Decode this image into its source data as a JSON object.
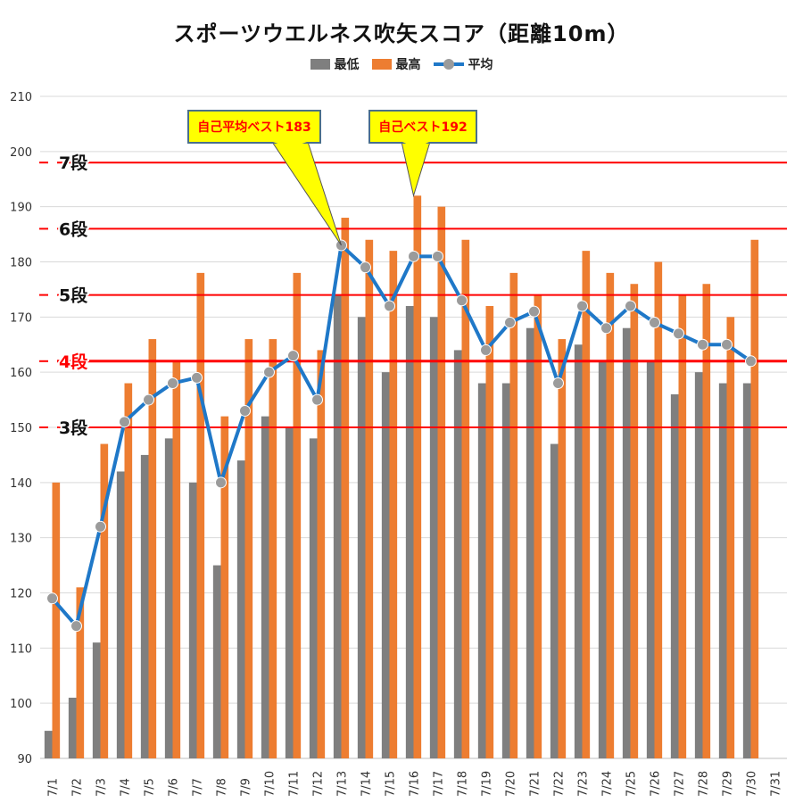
{
  "chart_data": {
    "type": "bar",
    "title": "スポーツウエルネス吹矢スコア（距離10m）",
    "categories": [
      "7/1",
      "7/2",
      "7/3",
      "7/4",
      "7/5",
      "7/6",
      "7/7",
      "7/8",
      "7/9",
      "7/10",
      "7/11",
      "7/12",
      "7/13",
      "7/14",
      "7/15",
      "7/16",
      "7/17",
      "7/18",
      "7/19",
      "7/20",
      "7/21",
      "7/22",
      "7/23",
      "7/24",
      "7/25",
      "7/26",
      "7/27",
      "7/28",
      "7/29",
      "7/30",
      "7/31"
    ],
    "series": [
      {
        "name": "最低",
        "kind": "bar",
        "color": "#7f7f7f",
        "values": [
          95,
          101,
          111,
          142,
          145,
          148,
          140,
          125,
          144,
          152,
          150,
          148,
          174,
          170,
          160,
          172,
          170,
          164,
          158,
          158,
          168,
          147,
          165,
          162,
          168,
          162,
          156,
          160,
          158,
          158,
          null
        ]
      },
      {
        "name": "最高",
        "kind": "bar",
        "color": "#ed7d31",
        "values": [
          140,
          121,
          147,
          158,
          166,
          162,
          178,
          152,
          166,
          166,
          178,
          164,
          188,
          184,
          182,
          192,
          190,
          184,
          172,
          178,
          174,
          166,
          182,
          178,
          176,
          180,
          174,
          176,
          170,
          184,
          null
        ]
      },
      {
        "name": "平均",
        "kind": "line",
        "color": "#1f78c8",
        "marker_color": "#9b9b9b",
        "values": [
          119,
          114,
          132,
          151,
          155,
          158,
          159,
          140,
          153,
          160,
          163,
          155,
          183,
          179,
          172,
          181,
          181,
          173,
          164,
          169,
          171,
          158,
          172,
          168,
          172,
          169,
          167,
          165,
          165,
          162,
          null
        ]
      }
    ],
    "ylim": [
      90,
      210
    ],
    "yticks": [
      90,
      100,
      110,
      120,
      130,
      140,
      150,
      160,
      170,
      180,
      190,
      200,
      210
    ],
    "grid": true,
    "legend": "top",
    "reference_lines": [
      {
        "label": "7段",
        "value": 198,
        "color": "#ff0000",
        "label_color": "#111111"
      },
      {
        "label": "6段",
        "value": 186,
        "color": "#ff0000",
        "label_color": "#111111"
      },
      {
        "label": "5段",
        "value": 174,
        "color": "#ff0000",
        "label_color": "#111111"
      },
      {
        "label": "4段",
        "value": 162,
        "color": "#ff0000",
        "label_color": "#ff0000"
      },
      {
        "label": "3段",
        "value": 150,
        "color": "#ff0000",
        "label_color": "#111111"
      }
    ],
    "callouts": [
      {
        "text": "自己平均ベスト183",
        "target_category": "7/13",
        "target_value": 183
      },
      {
        "text": "自己ベスト192",
        "target_category": "7/16",
        "target_value": 192
      }
    ]
  }
}
